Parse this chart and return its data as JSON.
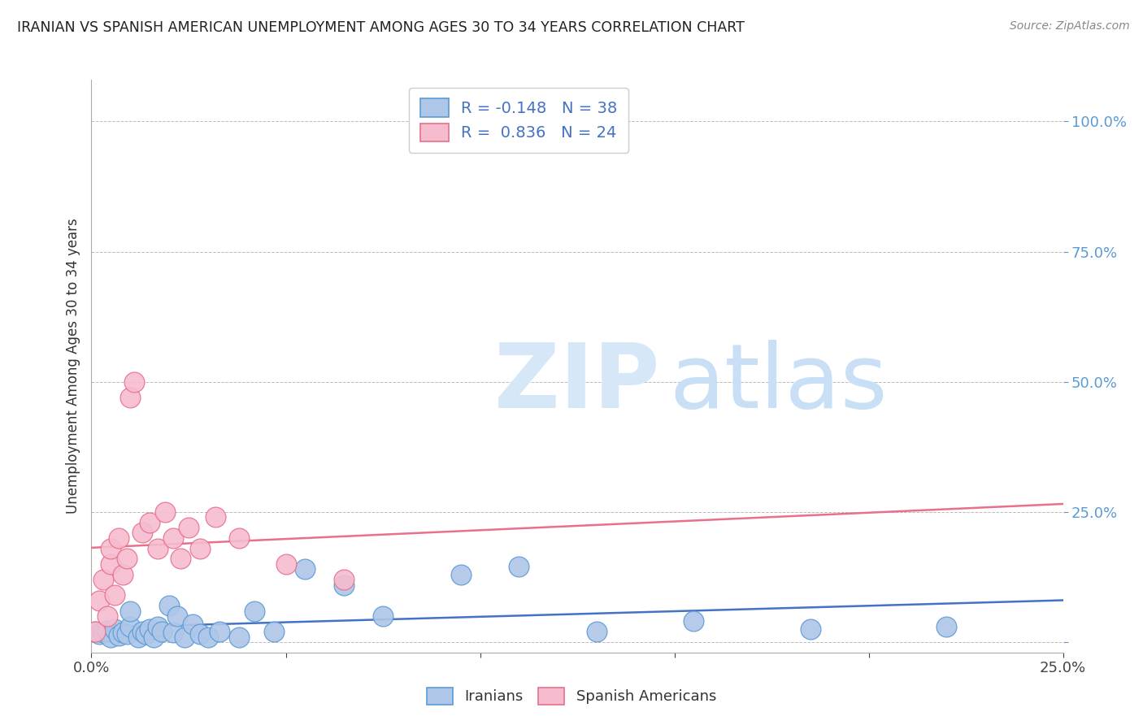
{
  "title": "IRANIAN VS SPANISH AMERICAN UNEMPLOYMENT AMONG AGES 30 TO 34 YEARS CORRELATION CHART",
  "source": "Source: ZipAtlas.com",
  "ylabel": "Unemployment Among Ages 30 to 34 years",
  "xlim": [
    0.0,
    0.25
  ],
  "ylim": [
    -0.02,
    1.08
  ],
  "xticks": [
    0.0,
    0.05,
    0.1,
    0.15,
    0.2,
    0.25
  ],
  "xticklabels": [
    "0.0%",
    "",
    "",
    "",
    "",
    "25.0%"
  ],
  "yticks": [
    0.0,
    0.25,
    0.5,
    0.75,
    1.0
  ],
  "yticklabels": [
    "",
    "25.0%",
    "50.0%",
    "75.0%",
    "100.0%"
  ],
  "iranian_color": "#aec6e8",
  "iranian_edge": "#5b9bd5",
  "spanish_color": "#f5bcd0",
  "spanish_edge": "#e8708a",
  "iranian_line_color": "#4472c4",
  "spanish_line_color": "#e8708a",
  "watermark_zip_color": "#d6e8f7",
  "watermark_atlas_color": "#c8dff5",
  "background_color": "#ffffff",
  "grid_color": "#bbbbbb",
  "title_color": "#222222",
  "source_color": "#888888",
  "tick_color_y": "#5b9bd5",
  "tick_color_x": "#444444",
  "legend_edge": "#cccccc",
  "legend_text_color": "#4472c4",
  "bottom_legend_color": "#333333",
  "iranians_x": [
    0.001,
    0.002,
    0.003,
    0.004,
    0.005,
    0.006,
    0.007,
    0.008,
    0.009,
    0.01,
    0.01,
    0.012,
    0.013,
    0.014,
    0.015,
    0.016,
    0.017,
    0.018,
    0.02,
    0.021,
    0.022,
    0.024,
    0.026,
    0.028,
    0.03,
    0.033,
    0.038,
    0.042,
    0.047,
    0.055,
    0.065,
    0.075,
    0.095,
    0.11,
    0.13,
    0.155,
    0.185,
    0.22
  ],
  "iranians_y": [
    0.02,
    0.015,
    0.018,
    0.022,
    0.01,
    0.025,
    0.012,
    0.018,
    0.015,
    0.03,
    0.06,
    0.01,
    0.02,
    0.015,
    0.025,
    0.01,
    0.03,
    0.02,
    0.07,
    0.018,
    0.05,
    0.01,
    0.035,
    0.015,
    0.01,
    0.02,
    0.01,
    0.06,
    0.02,
    0.14,
    0.11,
    0.05,
    0.13,
    0.145,
    0.02,
    0.04,
    0.025,
    0.03
  ],
  "spanish_x": [
    0.001,
    0.002,
    0.003,
    0.004,
    0.005,
    0.005,
    0.006,
    0.007,
    0.008,
    0.009,
    0.01,
    0.011,
    0.013,
    0.015,
    0.017,
    0.019,
    0.021,
    0.023,
    0.025,
    0.028,
    0.032,
    0.038,
    0.05,
    0.065
  ],
  "spanish_y": [
    0.02,
    0.08,
    0.12,
    0.05,
    0.15,
    0.18,
    0.09,
    0.2,
    0.13,
    0.16,
    0.47,
    0.5,
    0.21,
    0.23,
    0.18,
    0.25,
    0.2,
    0.16,
    0.22,
    0.18,
    0.24,
    0.2,
    0.15,
    0.12
  ],
  "iranian_slope": -0.148,
  "spanish_slope_label": 0.836,
  "legend_r1": "R = -0.148   N = 38",
  "legend_r2": "R =  0.836   N = 24"
}
